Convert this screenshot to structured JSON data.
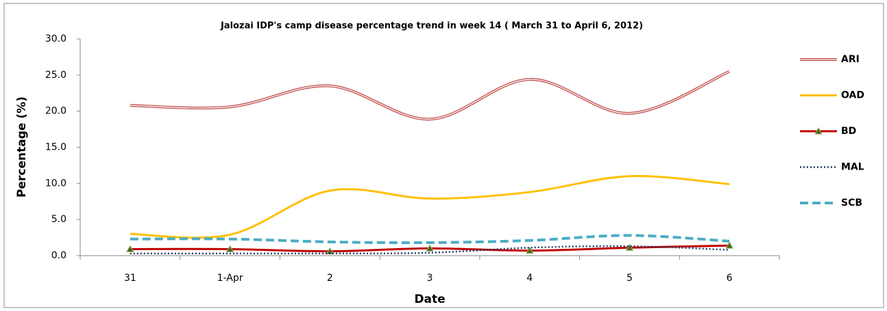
{
  "chart_data": {
    "type": "line",
    "title": "Jalozai IDP's camp disease percentage trend in week 14 ( March  31 to April 6, 2012)",
    "x_label": "Date",
    "y_label": "Percentage (%)",
    "categories": [
      "31",
      "1-Apr",
      "2",
      "3",
      "4",
      "5",
      "6"
    ],
    "series": [
      {
        "name": "ARI",
        "color": "#c0504d",
        "values": [
          20.8,
          20.6,
          23.5,
          18.9,
          24.4,
          19.7,
          25.5
        ]
      },
      {
        "name": "OAD",
        "color": "#ffc000",
        "values": [
          3.0,
          2.9,
          9.0,
          7.9,
          8.8,
          11.0,
          9.9
        ]
      },
      {
        "name": "BD",
        "color": "#c00000",
        "values": [
          0.9,
          0.9,
          0.6,
          1.0,
          0.7,
          1.1,
          1.4
        ]
      },
      {
        "name": "MAL",
        "color": "#1f3864",
        "values": [
          0.3,
          0.3,
          0.3,
          0.4,
          1.1,
          1.3,
          0.8
        ]
      },
      {
        "name": "SCB",
        "color": "#4bacc6",
        "values": [
          2.3,
          2.3,
          1.9,
          1.8,
          2.1,
          2.8,
          2.0
        ]
      }
    ],
    "ylim": [
      0,
      30
    ],
    "yticks": [
      {
        "value": 0,
        "label": "0.0"
      },
      {
        "value": 5,
        "label": "5.0"
      },
      {
        "value": 10,
        "label": "10.0"
      },
      {
        "value": 15,
        "label": "15.0"
      },
      {
        "value": 20,
        "label": "20.0"
      },
      {
        "value": 25,
        "label": "25.0"
      },
      {
        "value": 30,
        "label": "30.0"
      }
    ],
    "legend": "right"
  }
}
